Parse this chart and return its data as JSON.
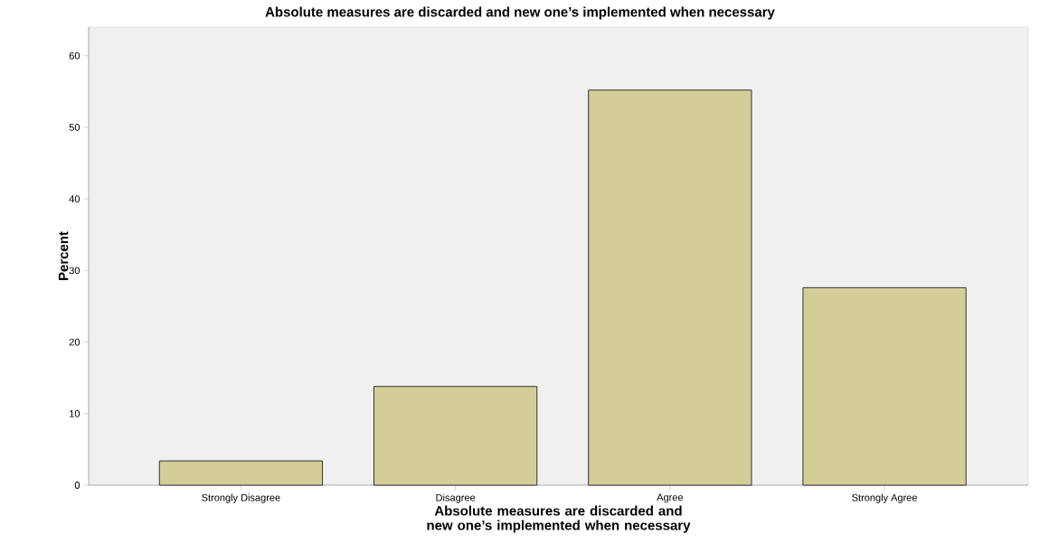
{
  "chart_data": {
    "type": "bar",
    "title": "Absolute measures are discarded and new one’s implemented when necessary",
    "xlabel": "Absolute measures are discarded and new one’s implemented when necessary",
    "ylabel": "Percent",
    "categories": [
      "Strongly Disagree",
      "Disagree",
      "Agree",
      "Strongly Agree"
    ],
    "values": [
      3.4,
      13.8,
      55.2,
      27.6
    ],
    "color": "#d3ce97",
    "ylim": [
      0,
      64
    ],
    "yticks": [
      0,
      10,
      20,
      30,
      40,
      50,
      60
    ]
  }
}
